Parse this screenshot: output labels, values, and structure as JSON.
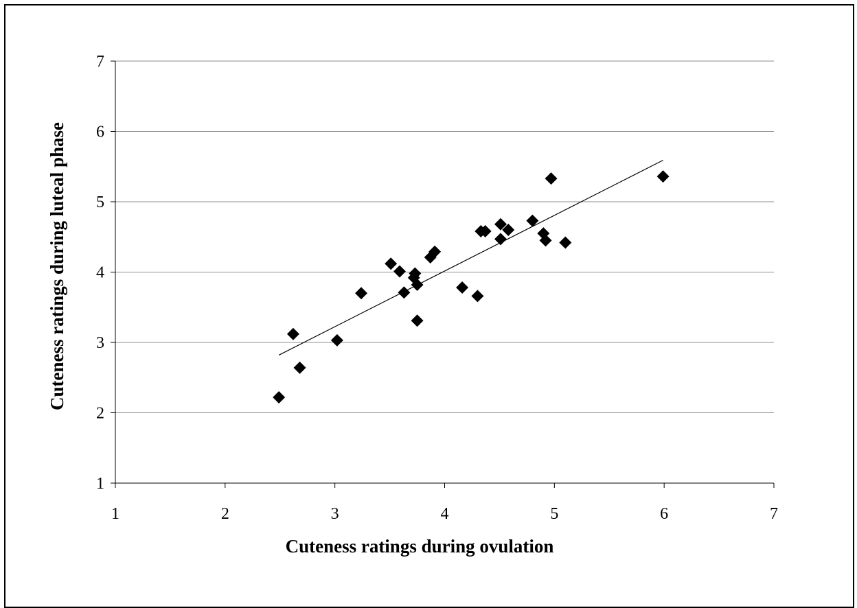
{
  "chart_data": {
    "type": "scatter",
    "title": "",
    "xlabel": "Cuteness ratings during ovulation",
    "ylabel": "Cuteness ratings during luteal phase",
    "xlim": [
      1,
      7
    ],
    "ylim": [
      1,
      7
    ],
    "x_ticks": [
      "1",
      "2",
      "3",
      "4",
      "5",
      "6",
      "7"
    ],
    "y_ticks": [
      "1",
      "2",
      "3",
      "4",
      "5",
      "6",
      "7"
    ],
    "grid": "horizontal",
    "legend": "none",
    "marker": "diamond",
    "marker_color": "#000000",
    "points": [
      {
        "x": 2.49,
        "y": 2.22
      },
      {
        "x": 2.62,
        "y": 3.12
      },
      {
        "x": 2.68,
        "y": 2.64
      },
      {
        "x": 3.02,
        "y": 3.03
      },
      {
        "x": 3.24,
        "y": 3.7
      },
      {
        "x": 3.51,
        "y": 4.12
      },
      {
        "x": 3.59,
        "y": 4.01
      },
      {
        "x": 3.63,
        "y": 3.71
      },
      {
        "x": 3.72,
        "y": 3.92
      },
      {
        "x": 3.73,
        "y": 3.98
      },
      {
        "x": 3.75,
        "y": 3.82
      },
      {
        "x": 3.75,
        "y": 3.31
      },
      {
        "x": 3.87,
        "y": 4.21
      },
      {
        "x": 3.91,
        "y": 4.29
      },
      {
        "x": 4.16,
        "y": 3.78
      },
      {
        "x": 4.3,
        "y": 3.66
      },
      {
        "x": 4.33,
        "y": 4.58
      },
      {
        "x": 4.37,
        "y": 4.58
      },
      {
        "x": 4.51,
        "y": 4.68
      },
      {
        "x": 4.51,
        "y": 4.47
      },
      {
        "x": 4.58,
        "y": 4.6
      },
      {
        "x": 4.8,
        "y": 4.73
      },
      {
        "x": 4.9,
        "y": 4.55
      },
      {
        "x": 4.92,
        "y": 4.45
      },
      {
        "x": 4.97,
        "y": 5.33
      },
      {
        "x": 5.1,
        "y": 4.42
      },
      {
        "x": 5.99,
        "y": 5.36
      }
    ],
    "trendline": {
      "x": [
        2.49,
        5.99
      ],
      "y": [
        2.82,
        5.59
      ]
    }
  }
}
